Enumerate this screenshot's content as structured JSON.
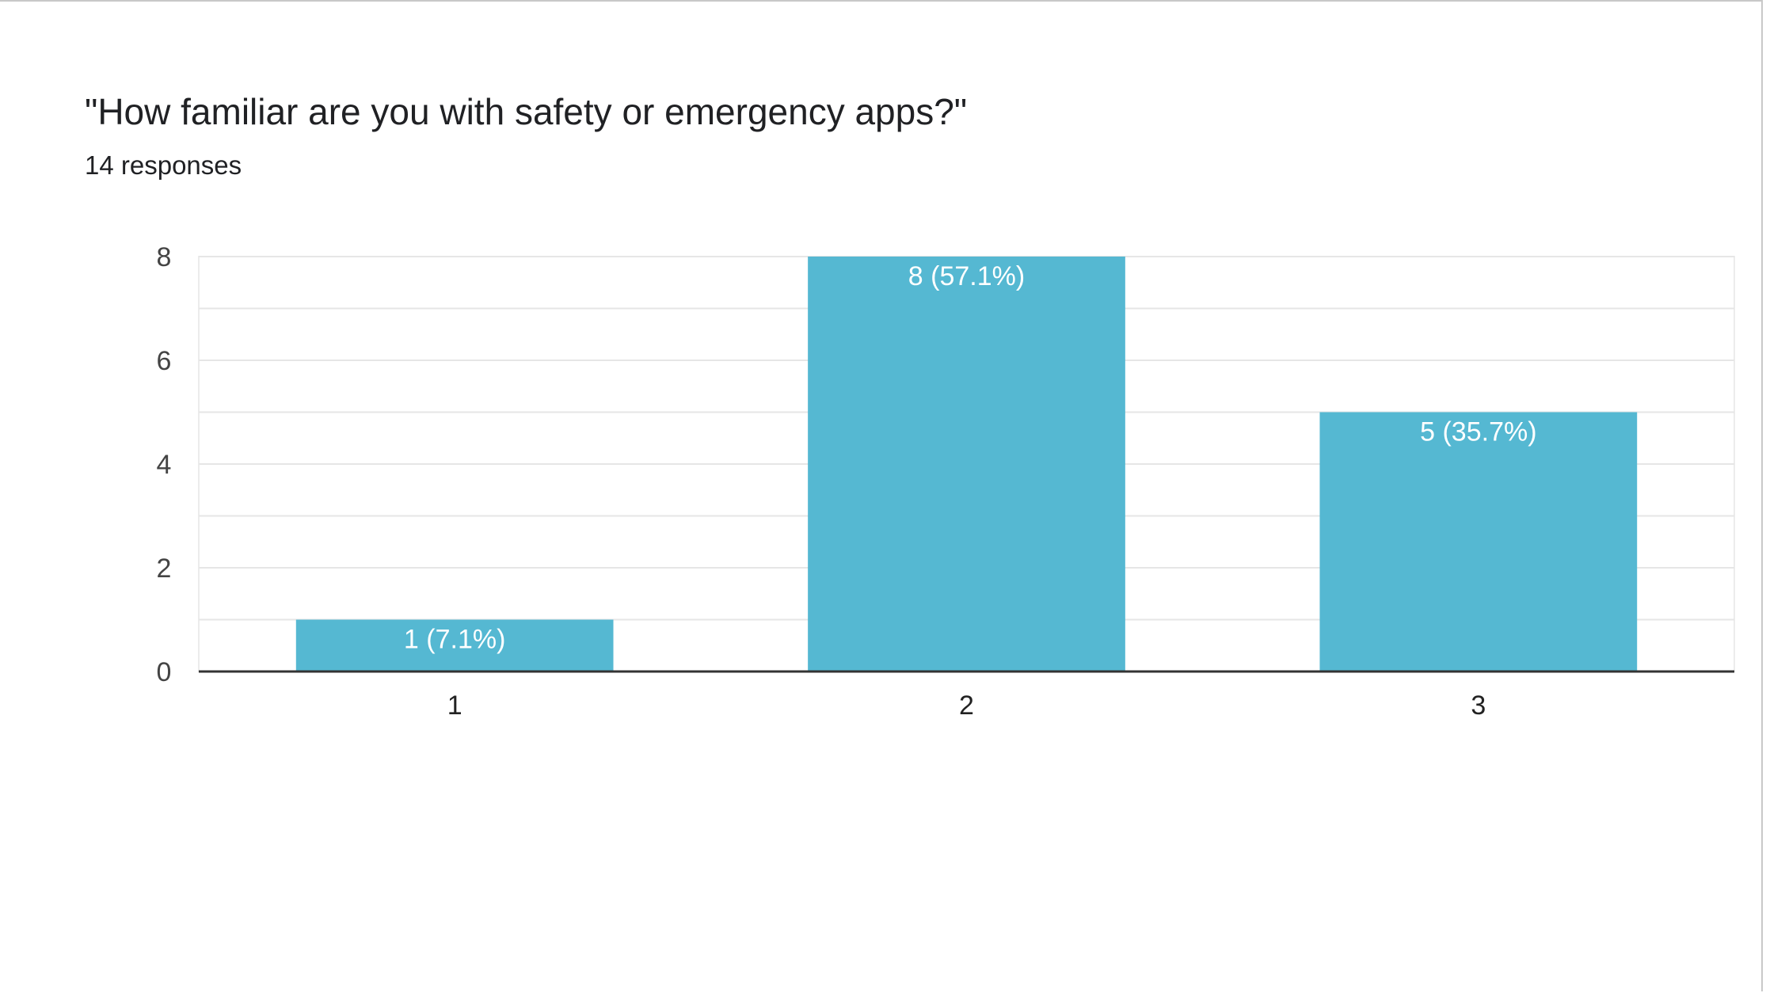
{
  "title": "\"How familiar are you with safety or emergency apps?\"",
  "subtitle": "14 responses",
  "colors": {
    "bar": "#55B8D2",
    "grid": "#e6e6e6",
    "axis": "#333333"
  },
  "chart_data": {
    "type": "bar",
    "title": "\"How familiar are you with safety or emergency apps?\"",
    "subtitle": "14 responses",
    "categories": [
      "1",
      "2",
      "3"
    ],
    "values": [
      1,
      8,
      5
    ],
    "data_labels": [
      "1 (7.1%)",
      "8 (57.1%)",
      "5 (35.7%)"
    ],
    "ylim": [
      0,
      8
    ],
    "yticks": [
      0,
      2,
      4,
      6,
      8
    ],
    "xlabel": "",
    "ylabel": "",
    "grid": true
  }
}
